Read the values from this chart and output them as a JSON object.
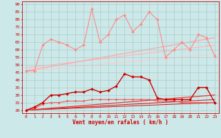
{
  "xlabel": "Vent moyen/en rafales ( km/h )",
  "bg_color": "#cce8e8",
  "grid_color": "#aacccc",
  "x_ticks": [
    0,
    1,
    2,
    3,
    4,
    5,
    6,
    7,
    8,
    9,
    10,
    11,
    12,
    13,
    14,
    15,
    16,
    17,
    18,
    19,
    20,
    21,
    22,
    23
  ],
  "y_ticks": [
    20,
    25,
    30,
    35,
    40,
    45,
    50,
    55,
    60,
    65,
    70,
    75,
    80,
    85,
    90
  ],
  "ylim": [
    18,
    92
  ],
  "xlim": [
    -0.5,
    23.5
  ],
  "line_light_zigzag": {
    "x": [
      0,
      1,
      2,
      3,
      4,
      5,
      6,
      7,
      8,
      9,
      10,
      11,
      12,
      13,
      14,
      15,
      16,
      17,
      18,
      19,
      20,
      21,
      22,
      23
    ],
    "y": [
      46,
      46,
      63,
      67,
      65,
      63,
      60,
      63,
      87,
      65,
      70,
      80,
      83,
      72,
      77,
      85,
      80,
      55,
      60,
      65,
      60,
      70,
      68,
      56
    ],
    "color": "#ff8888",
    "lw": 0.8,
    "marker": "D",
    "ms": 2
  },
  "line_light_trend1": {
    "x": [
      0,
      23
    ],
    "y": [
      46,
      68
    ],
    "color": "#ffaaaa",
    "lw": 1.0
  },
  "line_light_trend2": {
    "x": [
      0,
      23
    ],
    "y": [
      48,
      63
    ],
    "color": "#ffbbbb",
    "lw": 1.0
  },
  "line_light_trend3": {
    "x": [
      0,
      23
    ],
    "y": [
      46,
      57
    ],
    "color": "#ffcccc",
    "lw": 0.8
  },
  "line_dark_zigzag": {
    "x": [
      0,
      1,
      2,
      3,
      4,
      5,
      6,
      7,
      8,
      9,
      10,
      11,
      12,
      13,
      14,
      15,
      16,
      17,
      18,
      19,
      20,
      21,
      22,
      23
    ],
    "y": [
      20,
      22,
      25,
      30,
      30,
      31,
      32,
      32,
      34,
      32,
      33,
      36,
      44,
      42,
      42,
      40,
      28,
      27,
      27,
      27,
      27,
      35,
      35,
      25
    ],
    "color": "#cc0000",
    "lw": 1.0,
    "marker": "D",
    "ms": 2
  },
  "line_dark_trend1": {
    "x": [
      0,
      23
    ],
    "y": [
      20,
      30
    ],
    "color": "#ee3333",
    "lw": 0.9
  },
  "line_dark_trend2": {
    "x": [
      0,
      23
    ],
    "y": [
      20,
      27
    ],
    "color": "#dd2222",
    "lw": 0.8
  },
  "line_dark_trend3": {
    "x": [
      0,
      23
    ],
    "y": [
      20,
      25
    ],
    "color": "#cc1111",
    "lw": 0.7
  },
  "line_dark_smooth": {
    "x": [
      0,
      1,
      2,
      3,
      4,
      5,
      6,
      7,
      8,
      9,
      10,
      11,
      12,
      13,
      14,
      15,
      16,
      17,
      18,
      19,
      20,
      21,
      22,
      23
    ],
    "y": [
      20,
      21,
      24,
      25,
      25,
      26,
      26,
      26,
      27,
      27,
      27,
      27,
      27,
      27,
      27,
      27,
      26,
      26,
      26,
      25,
      25,
      25,
      25,
      25
    ],
    "color": "#ee5555",
    "lw": 0.8,
    "marker": "D",
    "ms": 1.5
  },
  "tick_color": "#cc0000",
  "tick_labelsize": 4.5,
  "xlabel_fontsize": 5.5
}
